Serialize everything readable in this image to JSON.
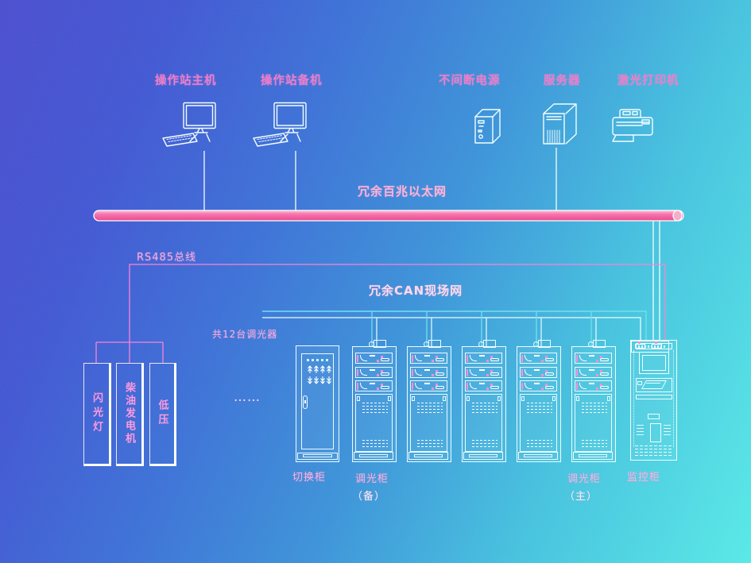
{
  "top_devices": [
    {
      "name": "workstation-main",
      "label": "操作站主机"
    },
    {
      "name": "workstation-backup",
      "label": "操作站备机"
    },
    {
      "name": "ups",
      "label": "不间断电源"
    },
    {
      "name": "server",
      "label": "服务器"
    },
    {
      "name": "printer",
      "label": "激光打印机"
    }
  ],
  "buses": {
    "ethernet_label": "冗余百兆以太网",
    "rs485_label": "RS485总线",
    "can_label": "冗余CAN现场网"
  },
  "annotations": {
    "dimmer_count": "共12台调光器",
    "ellipsis": "……"
  },
  "cabinet_labels": {
    "switch": "切换柜",
    "dimmer_backup": "调光柜",
    "dimmer_backup_sub": "（备）",
    "dimmer_main": "调光柜",
    "dimmer_main_sub": "（主）",
    "monitor": "监控柜"
  },
  "left_sources": [
    {
      "label": "闪光灯"
    },
    {
      "label": "柴油发电机"
    },
    {
      "label": "低压"
    }
  ],
  "colors": {
    "ethernet_bus_pink": "#ee4d8d",
    "rs485_wire_pink": "#f983d6",
    "can_wire_cyan": "#72dff2",
    "wire_white": "#f4ffff",
    "label_pink": "#ffaede",
    "background_top_left": "#4a4dce",
    "background_bottom_right": "#57e8e6"
  }
}
